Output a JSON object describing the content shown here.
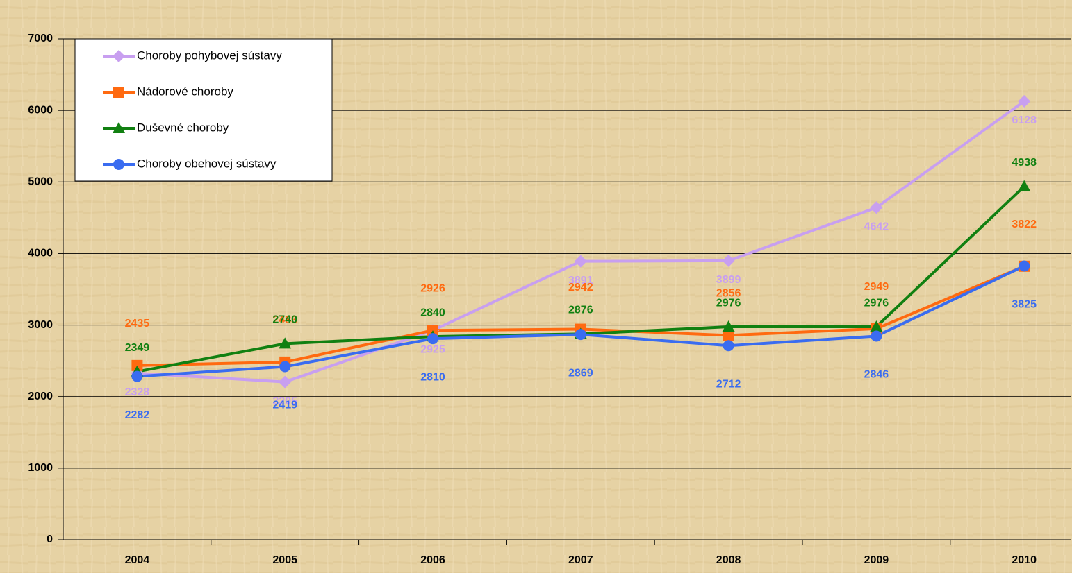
{
  "chart_data": {
    "type": "line",
    "categories": [
      "2004",
      "2005",
      "2006",
      "2007",
      "2008",
      "2009",
      "2010"
    ],
    "series": [
      {
        "name": "Choroby pohybovej sústavy",
        "color": "#c89ff0",
        "marker": "diamond",
        "values": [
          2328,
          2205,
          2925,
          3891,
          3899,
          4642,
          6128
        ]
      },
      {
        "name": "Nádorové choroby",
        "color": "#ff6a10",
        "marker": "square",
        "values": [
          2435,
          2483,
          2926,
          2942,
          2856,
          2949,
          3822
        ]
      },
      {
        "name": "Duševné choroby",
        "color": "#118011",
        "marker": "triangle",
        "values": [
          2349,
          2740,
          2840,
          2876,
          2976,
          2976,
          4938
        ]
      },
      {
        "name": "Choroby obehovej sústavy",
        "color": "#3a6cf0",
        "marker": "circle",
        "values": [
          2282,
          2419,
          2810,
          2869,
          2712,
          2846,
          3825
        ]
      }
    ],
    "ylim": [
      0,
      7000
    ],
    "yticks": [
      0,
      1000,
      2000,
      3000,
      4000,
      5000,
      6000,
      7000
    ],
    "grid": true,
    "legend": "upper left"
  }
}
